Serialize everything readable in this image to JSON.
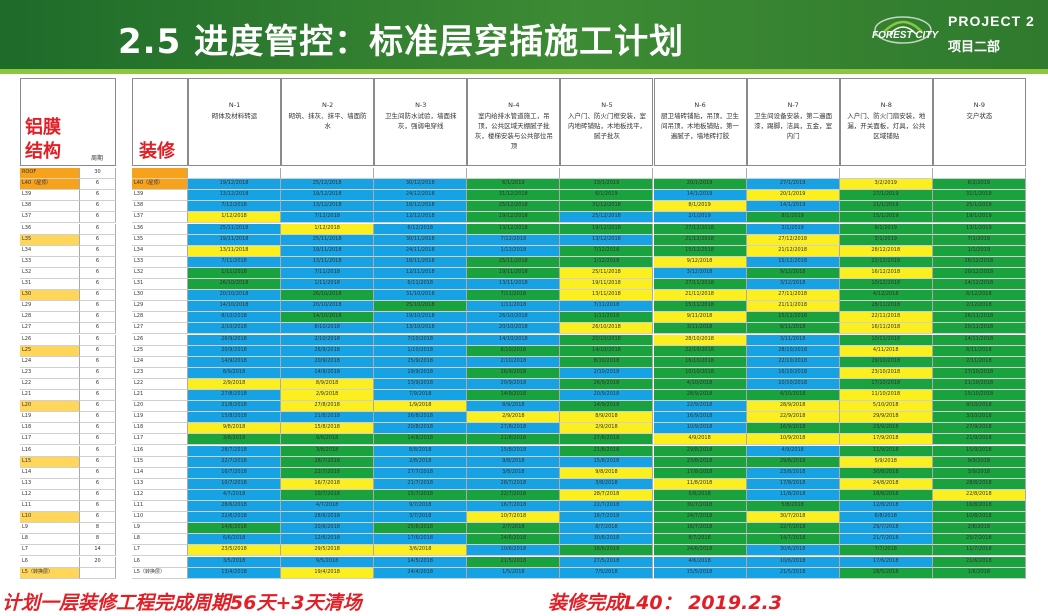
{
  "header": {
    "title": "2.5 进度管控：标准层穿插施工计划",
    "logo_text": "FOREST CITY",
    "project_en": "PROJECT 2",
    "project_cn": "项目二部"
  },
  "left_table": {
    "title_line1": "铝膜",
    "title_line2": "结构",
    "period_header": "周期",
    "rows": [
      {
        "floor": "ROOF",
        "days": "30",
        "color": "o"
      },
      {
        "floor": "L40（屋顶）",
        "days": "6",
        "color": "o"
      },
      {
        "floor": "L39",
        "days": "6",
        "color": "w"
      },
      {
        "floor": "L38",
        "days": "6",
        "color": "w"
      },
      {
        "floor": "L37",
        "days": "6",
        "color": "w"
      },
      {
        "floor": "L36",
        "days": "6",
        "color": "w"
      },
      {
        "floor": "L35",
        "days": "6",
        "color": "oy"
      },
      {
        "floor": "L34",
        "days": "6",
        "color": "w"
      },
      {
        "floor": "L33",
        "days": "6",
        "color": "w"
      },
      {
        "floor": "L32",
        "days": "6",
        "color": "w"
      },
      {
        "floor": "L31",
        "days": "6",
        "color": "w"
      },
      {
        "floor": "L30",
        "days": "6",
        "color": "oy"
      },
      {
        "floor": "L29",
        "days": "6",
        "color": "w"
      },
      {
        "floor": "L28",
        "days": "6",
        "color": "w"
      },
      {
        "floor": "L27",
        "days": "6",
        "color": "w"
      },
      {
        "floor": "L26",
        "days": "6",
        "color": "w"
      },
      {
        "floor": "L25",
        "days": "6",
        "color": "oy"
      },
      {
        "floor": "L24",
        "days": "6",
        "color": "w"
      },
      {
        "floor": "L23",
        "days": "6",
        "color": "w"
      },
      {
        "floor": "L22",
        "days": "6",
        "color": "w"
      },
      {
        "floor": "L21",
        "days": "6",
        "color": "w"
      },
      {
        "floor": "L20",
        "days": "6",
        "color": "oy"
      },
      {
        "floor": "L19",
        "days": "6",
        "color": "w"
      },
      {
        "floor": "L18",
        "days": "6",
        "color": "w"
      },
      {
        "floor": "L17",
        "days": "6",
        "color": "w"
      },
      {
        "floor": "L16",
        "days": "6",
        "color": "w"
      },
      {
        "floor": "L15",
        "days": "6",
        "color": "oy"
      },
      {
        "floor": "L14",
        "days": "6",
        "color": "w"
      },
      {
        "floor": "L13",
        "days": "6",
        "color": "w"
      },
      {
        "floor": "L12",
        "days": "6",
        "color": "w"
      },
      {
        "floor": "L11",
        "days": "6",
        "color": "w"
      },
      {
        "floor": "L10",
        "days": "6",
        "color": "oy"
      },
      {
        "floor": "L9",
        "days": "8",
        "color": "w"
      },
      {
        "floor": "L8",
        "days": "8",
        "color": "w"
      },
      {
        "floor": "L7",
        "days": "14",
        "color": "w"
      },
      {
        "floor": "L6",
        "days": "20",
        "color": "w"
      },
      {
        "floor": "L5（转换层）",
        "days": "",
        "color": "oy"
      }
    ]
  },
  "right_table": {
    "title": "装修",
    "floors": [
      "",
      "L40（屋顶）",
      "L39",
      "L38",
      "L37",
      "L36",
      "L35",
      "L34",
      "L33",
      "L32",
      "L31",
      "L30",
      "L29",
      "L28",
      "L27",
      "L26",
      "L25",
      "L24",
      "L23",
      "L22",
      "L21",
      "L20",
      "L19",
      "L18",
      "L17",
      "L16",
      "L15",
      "L14",
      "L13",
      "L12",
      "L11",
      "L10",
      "L9",
      "L8",
      "L7",
      "L6",
      "L5（转换层）"
    ],
    "columns": [
      {
        "code": "N-1",
        "desc": "砌体及材料转运"
      },
      {
        "code": "N-2",
        "desc": "砌筑、抹灰、抹平、墙面防水"
      },
      {
        "code": "N-3",
        "desc": "卫生间防水试验，墙面抹灰，强弱电穿线"
      },
      {
        "code": "N-4",
        "desc": "室内给排水管道施工，吊顶，公共区域天棚腻子批灰，楼梯安装与公共部位吊顶"
      },
      {
        "code": "N-5",
        "desc": "入户门、防火门框安装，室内地砖铺贴，木地板找平，腻子批灰"
      },
      {
        "code": "N-6",
        "desc": "厨卫墙砖铺贴，吊顶，卫生间吊顶，木地板铺贴，第一遍腻子，墙地砖打胶"
      },
      {
        "code": "N-7",
        "desc": "卫生间设备安装，第二遍面漆，踢脚，洁具，五金，室内门"
      },
      {
        "code": "N-8",
        "desc": "入户门、防火门扇安装，地漏，开关面板，灯具，公共区域铺贴"
      },
      {
        "code": "N-9",
        "desc": "交户状态"
      }
    ],
    "rows": [
      [
        "",
        "",
        "",
        "",
        "",
        "",
        "",
        "",
        ""
      ],
      [
        "19/12/2018",
        "25/12/2018",
        "30/12/2018",
        "6/1/2019",
        "13/1/2019",
        "20/1/2019",
        "27/1/2019",
        "3/2/2019",
        "6/2/2019"
      ],
      [
        "13/12/2018",
        "19/12/2018",
        "24/12/2018",
        "31/12/2018",
        "6/1/2019",
        "14/1/2019",
        "20/1/2019",
        "27/1/2019",
        "31/1/2019"
      ],
      [
        "7/12/2018",
        "13/12/2018",
        "18/12/2018",
        "25/12/2018",
        "31/12/2018",
        "8/1/2019",
        "14/1/2019",
        "21/1/2019",
        "25/1/2019"
      ],
      [
        "1/12/2018",
        "7/12/2018",
        "12/12/2018",
        "19/12/2018",
        "25/12/2018",
        "2/1/2019",
        "8/1/2019",
        "15/1/2019",
        "19/1/2019"
      ],
      [
        "25/11/2018",
        "1/12/2018",
        "6/12/2018",
        "13/12/2018",
        "19/12/2018",
        "27/12/2018",
        "2/1/2019",
        "9/1/2019",
        "13/1/2019"
      ],
      [
        "19/11/2018",
        "25/11/2018",
        "30/11/2018",
        "7/12/2018",
        "13/12/2018",
        "21/12/2018",
        "27/12/2018",
        "3/1/2019",
        "7/1/2019"
      ],
      [
        "13/11/2018",
        "19/11/2018",
        "24/11/2018",
        "1/12/2018",
        "7/12/2018",
        "15/12/2018",
        "21/12/2018",
        "28/12/2018",
        "1/1/2019"
      ],
      [
        "7/11/2018",
        "13/11/2018",
        "18/11/2018",
        "25/11/2018",
        "1/12/2018",
        "9/12/2018",
        "15/12/2018",
        "22/12/2018",
        "26/12/2018"
      ],
      [
        "1/11/2018",
        "7/11/2018",
        "12/11/2018",
        "19/11/2018",
        "25/11/2018",
        "3/12/2018",
        "9/12/2018",
        "16/12/2018",
        "20/12/2018"
      ],
      [
        "26/10/2018",
        "1/11/2018",
        "6/11/2018",
        "13/11/2018",
        "19/11/2018",
        "27/11/2018",
        "3/12/2018",
        "10/12/2018",
        "14/12/2018"
      ],
      [
        "20/10/2018",
        "26/10/2018",
        "31/10/2018",
        "7/11/2018",
        "13/11/2018",
        "21/11/2018",
        "27/11/2018",
        "4/12/2018",
        "8/12/2018"
      ],
      [
        "14/10/2018",
        "20/10/2018",
        "25/10/2018",
        "1/11/2018",
        "7/11/2018",
        "15/11/2018",
        "21/11/2018",
        "28/11/2018",
        "2/12/2018"
      ],
      [
        "8/10/2018",
        "14/10/2018",
        "19/10/2018",
        "26/10/2018",
        "1/11/2018",
        "9/11/2018",
        "15/11/2018",
        "22/11/2018",
        "26/11/2018"
      ],
      [
        "2/10/2018",
        "8/10/2018",
        "13/10/2018",
        "20/10/2018",
        "26/10/2018",
        "3/11/2018",
        "9/11/2018",
        "16/11/2018",
        "20/11/2018"
      ],
      [
        "26/9/2018",
        "2/10/2018",
        "7/10/2018",
        "14/10/2018",
        "20/10/2018",
        "28/10/2018",
        "3/11/2018",
        "10/11/2018",
        "14/11/2018"
      ],
      [
        "20/9/2018",
        "26/9/2018",
        "1/10/2018",
        "8/10/2018",
        "14/10/2018",
        "22/10/2018",
        "28/10/2018",
        "4/11/2018",
        "8/11/2018"
      ],
      [
        "14/9/2018",
        "20/9/2018",
        "25/9/2018",
        "2/10/2018",
        "8/10/2018",
        "16/10/2018",
        "22/10/2018",
        "29/10/2018",
        "2/11/2018"
      ],
      [
        "8/9/2018",
        "14/9/2018",
        "19/9/2018",
        "26/9/2018",
        "2/10/2018",
        "10/10/2018",
        "16/10/2018",
        "23/10/2018",
        "27/10/2018"
      ],
      [
        "2/9/2018",
        "8/9/2018",
        "13/9/2018",
        "20/9/2018",
        "26/9/2018",
        "4/10/2018",
        "10/10/2018",
        "17/10/2018",
        "21/10/2018"
      ],
      [
        "27/8/2018",
        "2/9/2018",
        "7/9/2018",
        "14/9/2018",
        "20/9/2018",
        "28/9/2018",
        "4/10/2018",
        "11/10/2018",
        "15/10/2018"
      ],
      [
        "21/8/2018",
        "27/8/2018",
        "1/9/2018",
        "8/9/2018",
        "14/9/2018",
        "22/9/2018",
        "28/9/2018",
        "5/10/2018",
        "9/10/2018"
      ],
      [
        "15/8/2018",
        "21/8/2018",
        "26/8/2018",
        "2/9/2018",
        "8/9/2018",
        "16/9/2018",
        "22/9/2018",
        "29/9/2018",
        "3/10/2018"
      ],
      [
        "9/8/2018",
        "15/8/2018",
        "20/8/2018",
        "27/8/2018",
        "2/9/2018",
        "10/9/2018",
        "16/9/2018",
        "23/9/2018",
        "27/9/2018"
      ],
      [
        "3/8/2018",
        "9/8/2018",
        "14/8/2018",
        "21/8/2018",
        "27/8/2018",
        "4/9/2018",
        "10/9/2018",
        "17/9/2018",
        "21/9/2018"
      ],
      [
        "28/7/2018",
        "3/8/2018",
        "8/8/2018",
        "15/8/2018",
        "21/8/2018",
        "29/8/2018",
        "4/9/2018",
        "11/9/2018",
        "15/9/2018"
      ],
      [
        "22/7/2018",
        "28/7/2018",
        "2/8/2018",
        "9/8/2018",
        "15/8/2018",
        "23/8/2018",
        "29/8/2018",
        "5/9/2018",
        "9/9/2018"
      ],
      [
        "16/7/2018",
        "22/7/2018",
        "27/7/2018",
        "3/8/2018",
        "9/8/2018",
        "17/8/2018",
        "23/8/2018",
        "30/8/2018",
        "3/9/2018"
      ],
      [
        "10/7/2018",
        "16/7/2018",
        "21/7/2018",
        "28/7/2018",
        "3/8/2018",
        "11/8/2018",
        "17/8/2018",
        "24/8/2018",
        "28/8/2018"
      ],
      [
        "4/7/2018",
        "10/7/2018",
        "15/7/2018",
        "22/7/2018",
        "28/7/2018",
        "5/8/2018",
        "11/8/2018",
        "18/8/2018",
        "22/8/2018"
      ],
      [
        "28/6/2018",
        "4/7/2018",
        "9/7/2018",
        "16/7/2018",
        "22/7/2018",
        "30/7/2018",
        "5/8/2018",
        "12/8/2018",
        "16/8/2018"
      ],
      [
        "22/6/2018",
        "28/6/2018",
        "3/7/2018",
        "10/7/2018",
        "16/7/2018",
        "24/7/2018",
        "30/7/2018",
        "6/8/2018",
        "10/8/2018"
      ],
      [
        "14/6/2018",
        "20/6/2018",
        "25/6/2018",
        "2/7/2018",
        "8/7/2018",
        "16/7/2018",
        "22/7/2018",
        "29/7/2018",
        "2/8/2018"
      ],
      [
        "6/6/2018",
        "12/6/2018",
        "17/6/2018",
        "24/6/2018",
        "30/6/2018",
        "8/7/2018",
        "14/7/2018",
        "21/7/2018",
        "25/7/2018"
      ],
      [
        "23/5/2018",
        "29/5/2018",
        "3/6/2018",
        "10/6/2018",
        "16/6/2018",
        "24/6/2018",
        "30/6/2018",
        "7/7/2018",
        "11/7/2018"
      ],
      [
        "3/5/2018",
        "9/5/2018",
        "14/5/2018",
        "21/5/2018",
        "27/5/2018",
        "4/6/2018",
        "10/6/2018",
        "17/6/2018",
        "21/6/2018"
      ],
      [
        "13/4/2018",
        "19/4/2018",
        "24/4/2018",
        "1/5/2018",
        "7/5/2018",
        "15/5/2018",
        "21/5/2018",
        "28/5/2018",
        "1/6/2018"
      ]
    ],
    "colors": [
      "wwwwwwwww",
      "bbbgggbyg",
      "bbbggbygg",
      "bbbggybgg",
      "ybbgbbggg",
      "bybgggbgg",
      "bbbbbgygg",
      "ybbbggyyg",
      "bbbggybgg",
      "gbbgybgyg",
      "gbbbygbgg",
      "bgbgyyygg",
      "bbgbbgygg",
      "bgbbgygyg",
      "bbbbyggyg",
      "bbbbgybgg",
      "bbbgggbyg",
      "bbbbggbgg",
      "bbbgbgbyg",
      "yybbggbgg",
      "bybgbggyg",
      "byybgbyyg",
      "bbbyybyyg",
      "yybbybggg",
      "gggggyyyg",
      "bgbbggbgg",
      "bgbbbggyg",
      "bgbbygbgg",
      "bybbbybyg",
      "bgggygbgy",
      "bbbbbggbg",
      "bbbybgybg",
      "gbggbggbg",
      "bbbgbggbg",
      "yyybggbgg",
      "bbbgbbbbg",
      "bybbbbbgg"
    ]
  },
  "footer": {
    "left": "计划一层装修工程完成周期56天+3天清场",
    "right": "装修完成L40：  2019.2.3"
  }
}
